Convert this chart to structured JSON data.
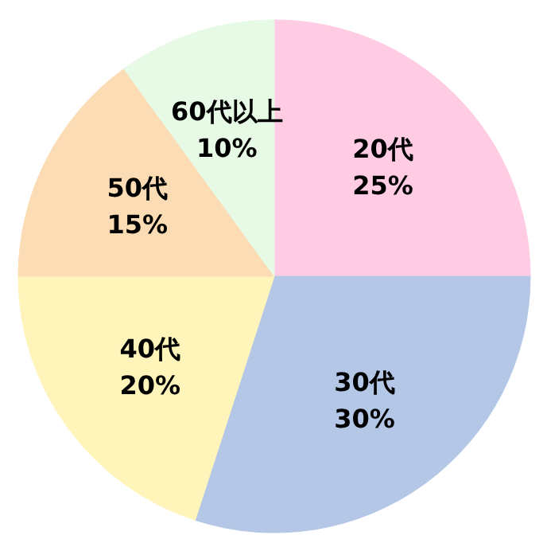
{
  "chart_data": {
    "type": "pie",
    "categories": [
      "20代",
      "30代",
      "40代",
      "50代",
      "60代以上"
    ],
    "values": [
      25,
      30,
      20,
      15,
      10
    ],
    "colors": [
      "#ffcce4",
      "#b4c7e7",
      "#fff5bb",
      "#fcdcb4",
      "#e6fae6"
    ],
    "value_labels": [
      "25%",
      "30%",
      "20%",
      "15%",
      "10%"
    ]
  }
}
